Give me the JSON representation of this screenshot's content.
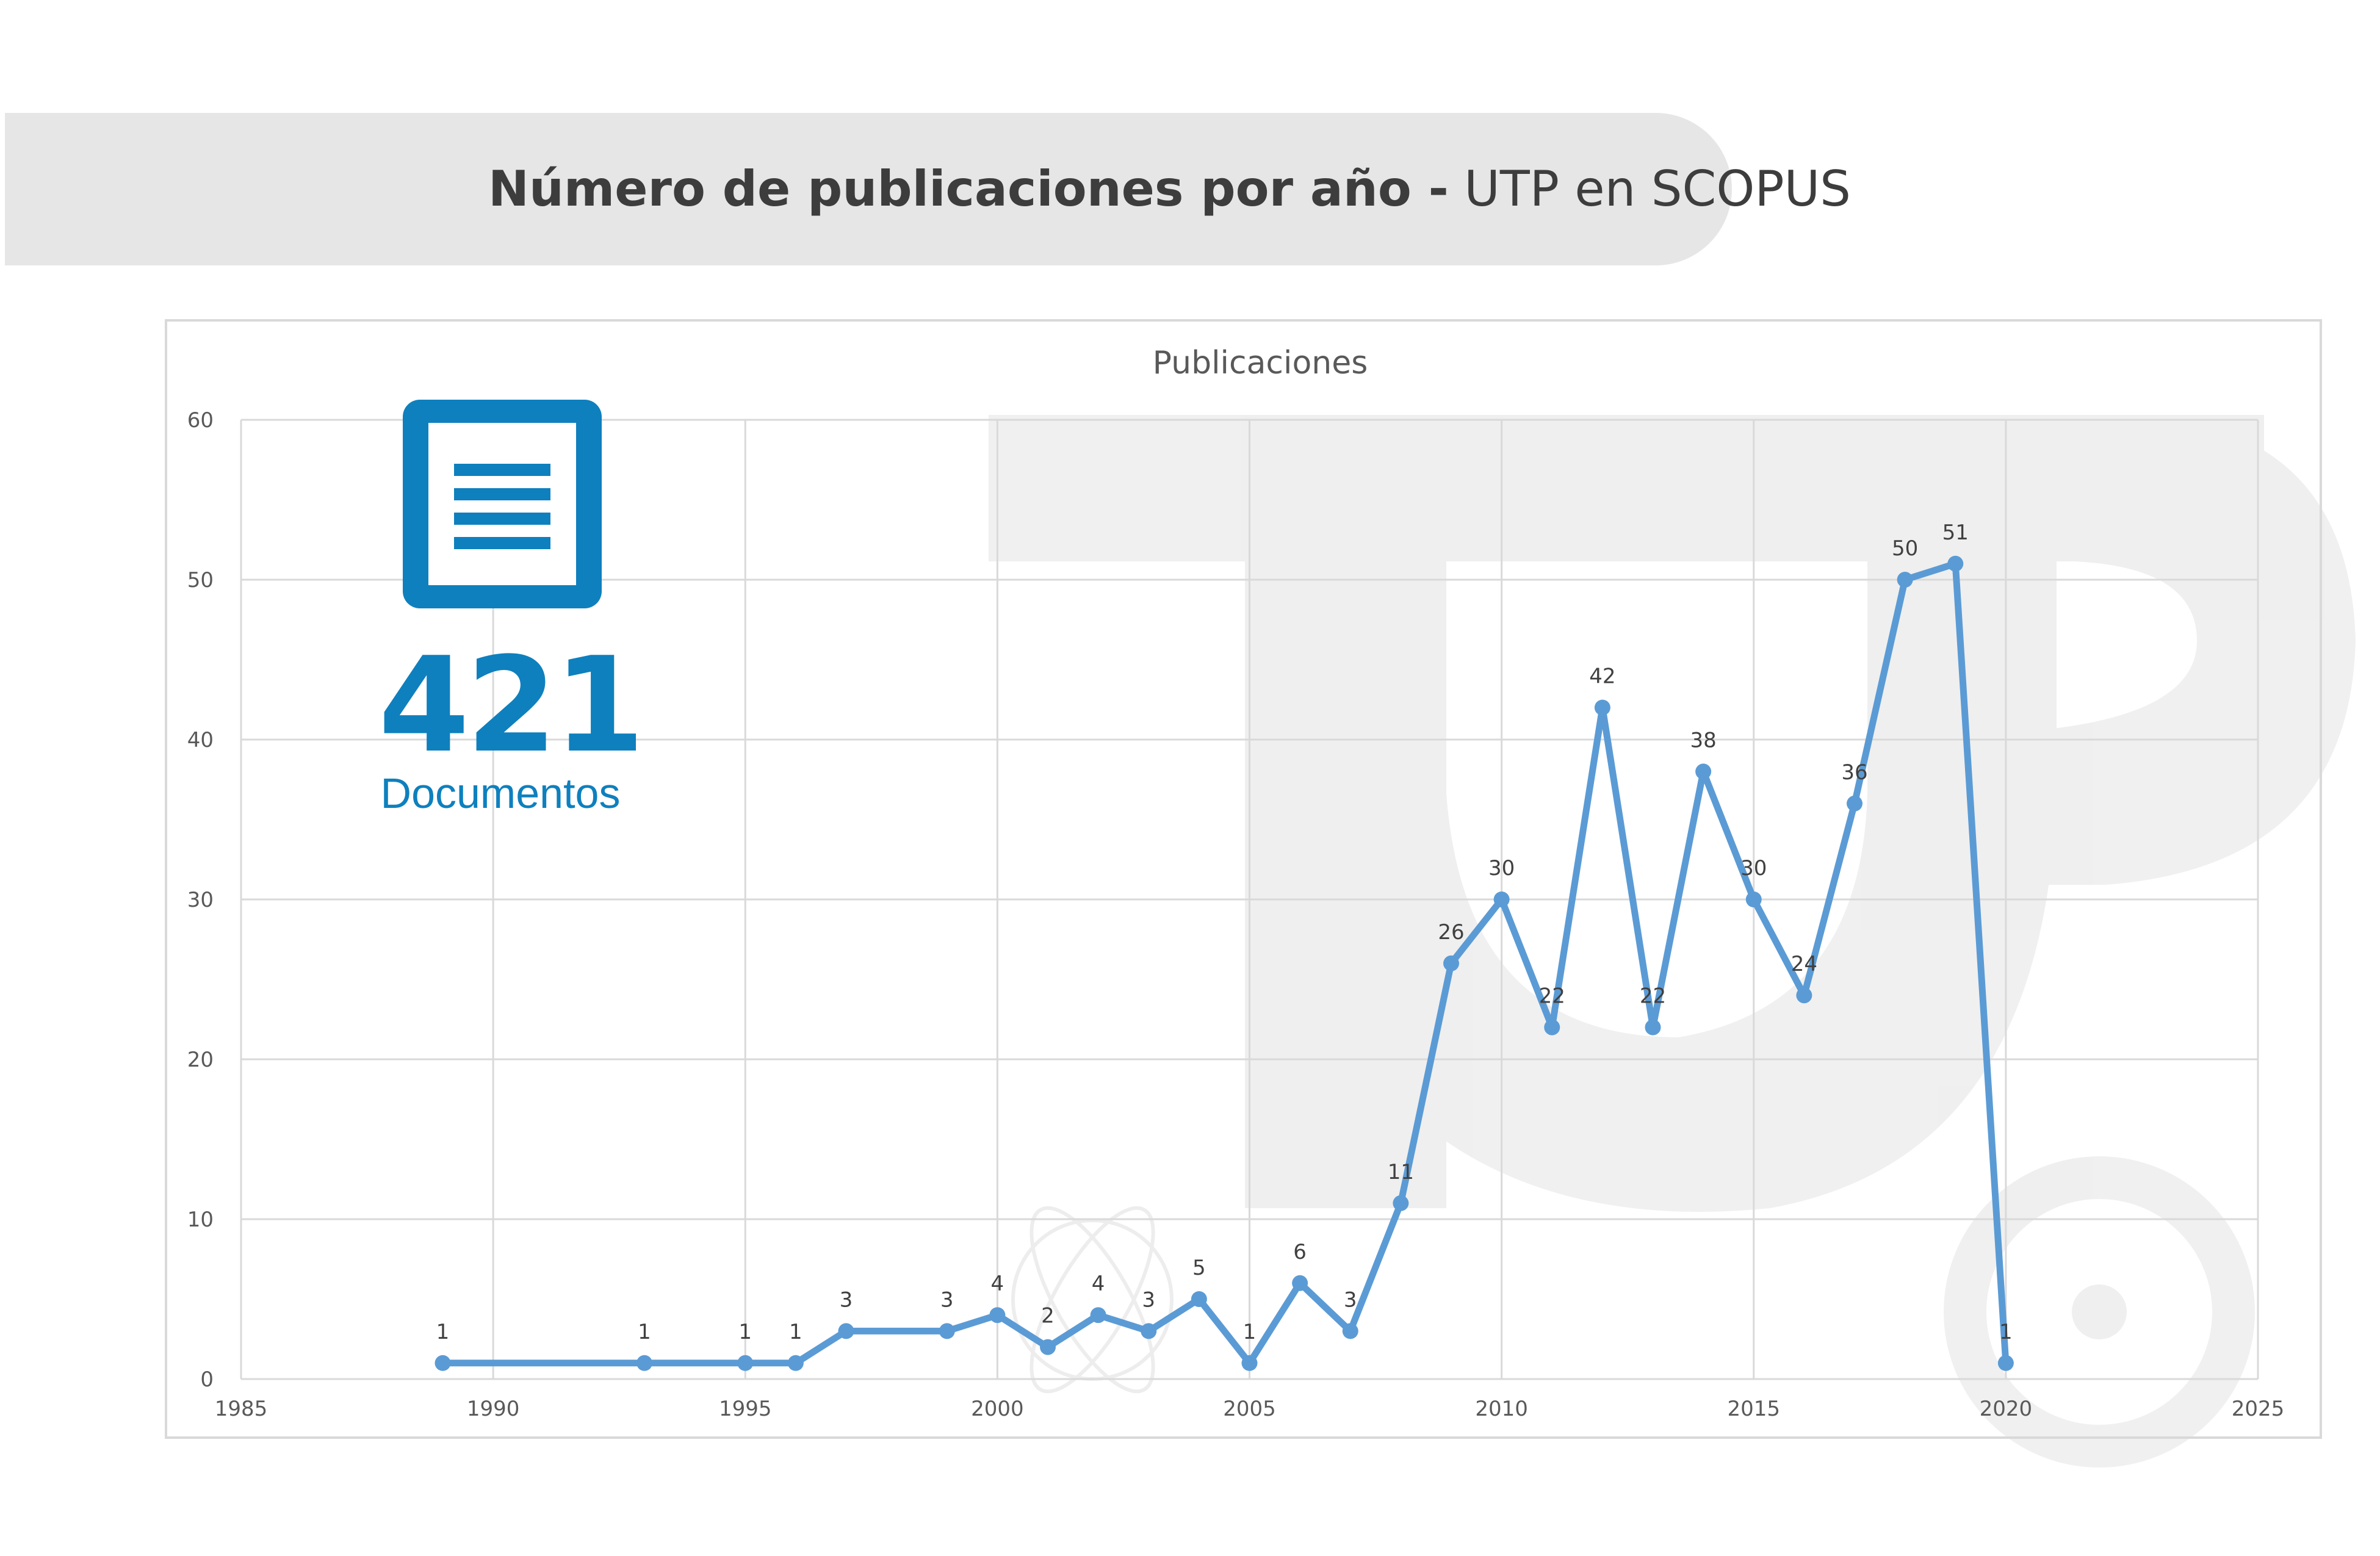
{
  "header": {
    "title_bold": "Número de publicaciones por año -",
    "title_rest": " UTP en SCOPUS"
  },
  "summary": {
    "icon": "document-icon",
    "count": "421",
    "label": "Documentos"
  },
  "colors": {
    "accent": "#0e80be",
    "series": "#5b9bd5",
    "title_band": "#e6e6e6"
  },
  "chart_data": {
    "type": "scatter",
    "title": "Publicaciones",
    "xlabel": "",
    "ylabel": "",
    "xlim": [
      1985,
      2025
    ],
    "ylim": [
      0,
      60
    ],
    "xticks": [
      1985,
      1990,
      1995,
      2000,
      2005,
      2010,
      2015,
      2020,
      2025
    ],
    "yticks": [
      0,
      10,
      20,
      30,
      40,
      50,
      60
    ],
    "grid": true,
    "series": [
      {
        "x": [
          1989,
          1993,
          1995,
          1996,
          1997,
          1999,
          2000,
          2001,
          2002,
          2003,
          2004,
          2005,
          2006,
          2007,
          2008,
          2009,
          2010,
          2011,
          2012,
          2013,
          2014,
          2015,
          2016,
          2017,
          2018,
          2019,
          2020
        ],
        "y": [
          1,
          1,
          1,
          1,
          3,
          3,
          4,
          2,
          4,
          3,
          5,
          1,
          6,
          3,
          11,
          26,
          30,
          22,
          42,
          22,
          38,
          30,
          24,
          36,
          50,
          51,
          1
        ],
        "data_labels": true
      }
    ]
  }
}
